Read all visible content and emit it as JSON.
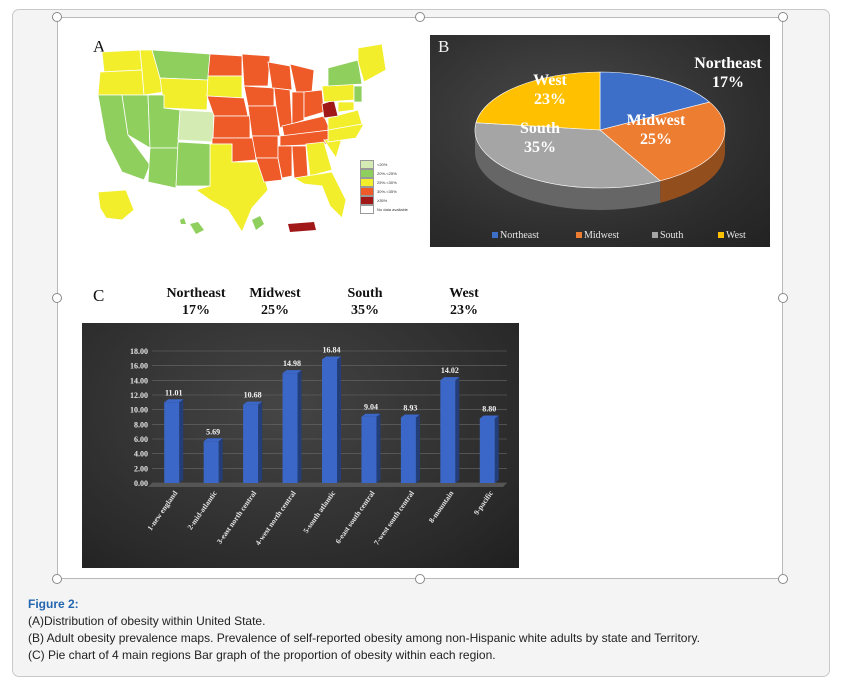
{
  "panels": {
    "a_label": "A",
    "b_label": "B",
    "c_label": "C"
  },
  "map_legend": [
    {
      "label": "<20%",
      "color": "#d4ecb4"
    },
    {
      "label": "20%-<25%",
      "color": "#8fcf5e"
    },
    {
      "label": "25%-<30%",
      "color": "#f2ee2c"
    },
    {
      "label": "30%-<35%",
      "color": "#ee5a28"
    },
    {
      "label": "≥35%",
      "color": "#a01818"
    },
    {
      "label": "No data available",
      "color": "#ffffff"
    }
  ],
  "region_headers": [
    {
      "name": "Northeast",
      "pct": "17%"
    },
    {
      "name": "Midwest",
      "pct": "25%"
    },
    {
      "name": "South",
      "pct": "35%"
    },
    {
      "name": "West",
      "pct": "23%"
    }
  ],
  "chart_data": [
    {
      "type": "pie",
      "panel": "B",
      "categories": [
        "Northeast",
        "Midwest",
        "South",
        "West"
      ],
      "values": [
        17,
        25,
        35,
        23
      ],
      "labels": [
        "17%",
        "25%",
        "35%",
        "23%"
      ],
      "colors": [
        "#3d6fc8",
        "#ed7d31",
        "#a5a5a5",
        "#ffc000"
      ],
      "legend_position": "bottom"
    },
    {
      "type": "bar",
      "panel": "C",
      "categories": [
        "1-new england",
        "2-mid-atlantic",
        "3-east north central",
        "4-west north central",
        "5-south atlantic",
        "6-east south central",
        "7-west south central",
        "8-mountain",
        "9-pacific"
      ],
      "values": [
        11.01,
        5.69,
        10.68,
        14.98,
        16.84,
        9.04,
        8.93,
        14.02,
        8.8
      ],
      "value_labels": [
        "11.01",
        "5.69",
        "10.68",
        "14.98",
        "16.84",
        "9.04",
        "8.93",
        "14.02",
        "8.80"
      ],
      "yticks": [
        "0.00",
        "2.00",
        "4.00",
        "6.00",
        "8.00",
        "10.00",
        "12.00",
        "14.00",
        "16.00",
        "18.00"
      ],
      "ylim": [
        0,
        18
      ],
      "bar_color": "#3a67c8"
    }
  ],
  "caption": {
    "title": "Figure 2:",
    "line_a": "(A)Distribution of obesity within United State.",
    "line_b": "(B) Adult obesity prevalence maps. Prevalence of self-reported obesity among non-Hispanic white adults by state and Territory.",
    "line_c": "(C) Pie chart of 4 main regions Bar graph of the proportion of obesity within each region."
  }
}
